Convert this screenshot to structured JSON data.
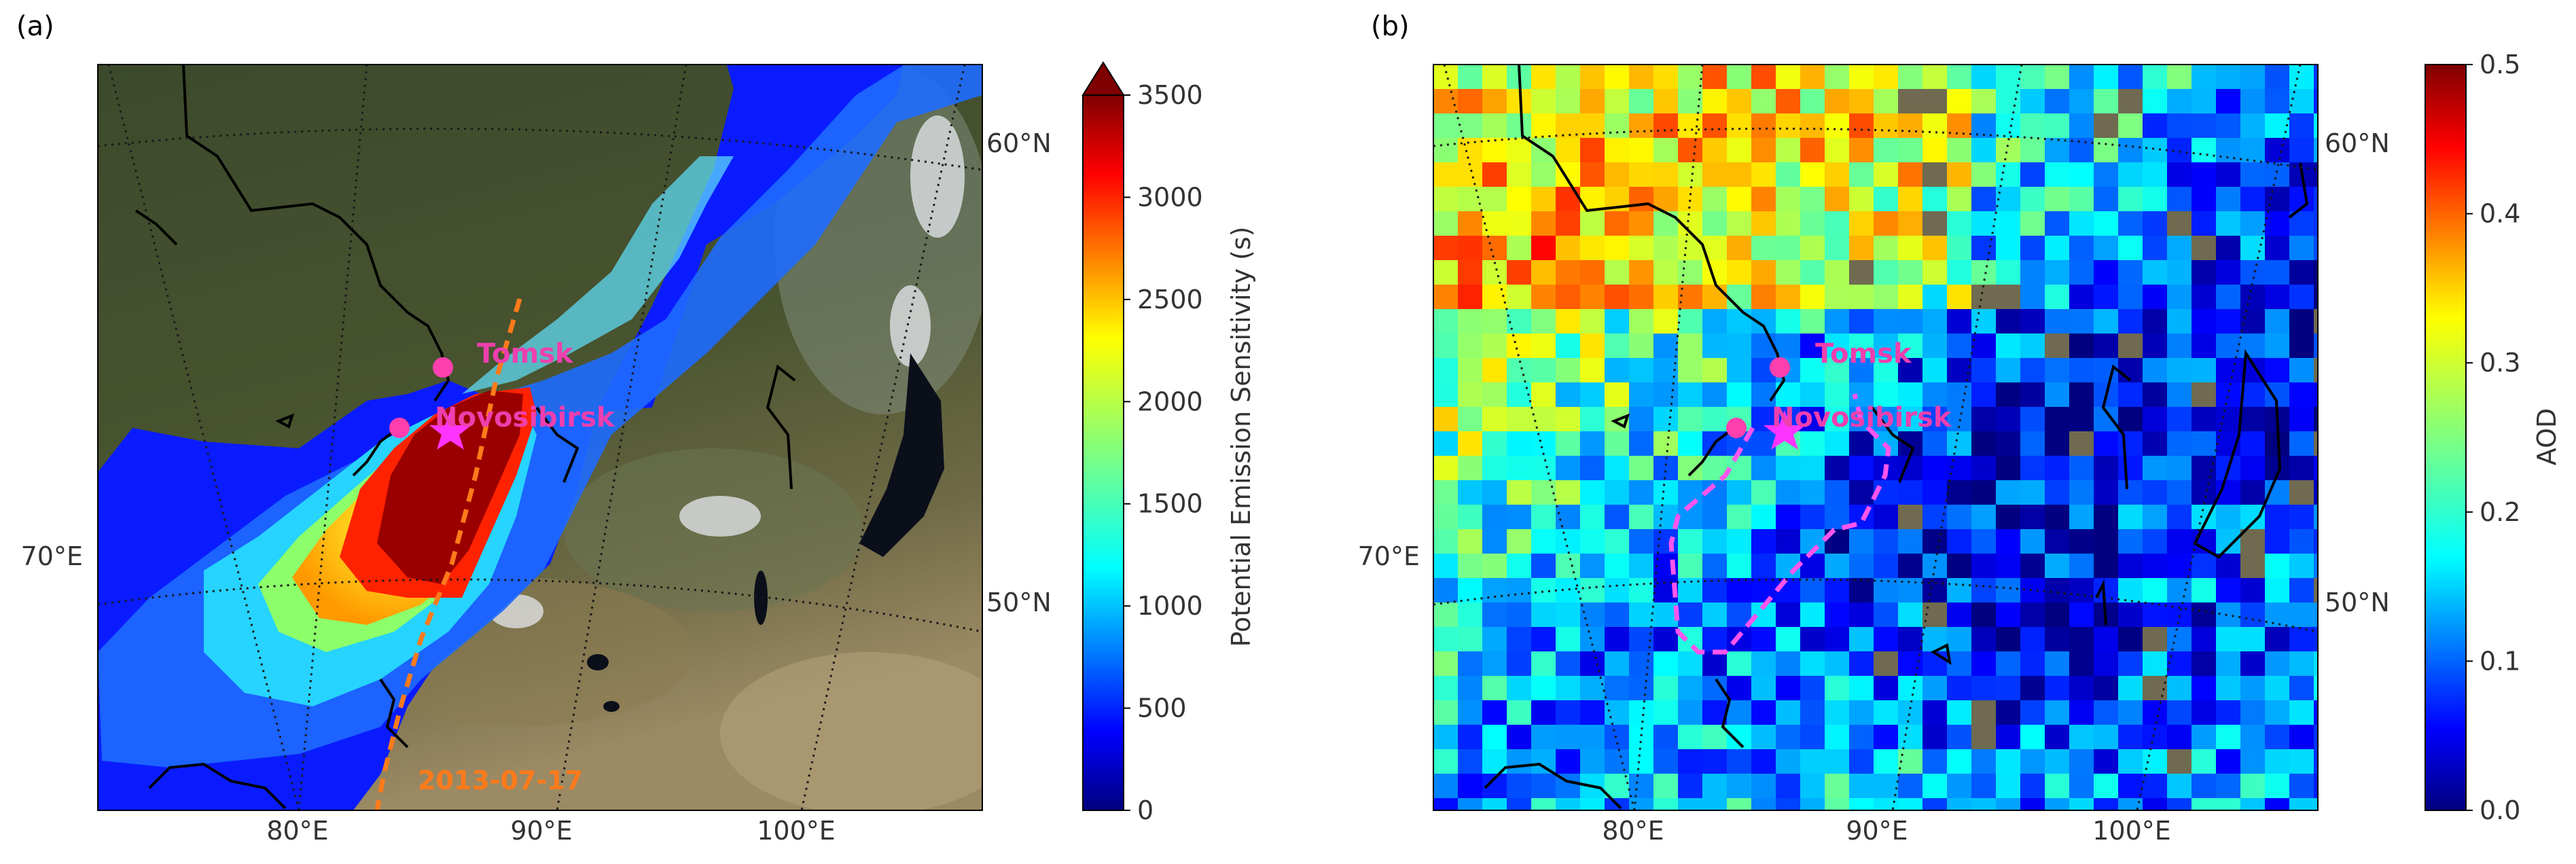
{
  "figure": {
    "panels": [
      {
        "panel_label": "(a)",
        "map": {
          "meridian_labels": [
            "80°E",
            "90°E",
            "100°E"
          ],
          "left_meridian_label": "70°E",
          "parallel_labels": [
            "60°N",
            "50°N"
          ],
          "cities": [
            {
              "name": "Tomsk"
            },
            {
              "name": "Novosibirsk"
            }
          ],
          "trajectory_date_label": "2013-07-17",
          "background": "satellite imagery",
          "overlay": "potential emission sensitivity field"
        },
        "colorbar": {
          "label": "Potential Emission Sensitivity (s)",
          "tick_labels": [
            "0",
            "500",
            "1000",
            "1500",
            "2000",
            "2500",
            "3000",
            "3500"
          ],
          "range": [
            0,
            3500
          ],
          "extend": "max",
          "colormap": "jet"
        }
      },
      {
        "panel_label": "(b)",
        "map": {
          "meridian_labels": [
            "80°E",
            "90°E",
            "100°E"
          ],
          "left_meridian_label": "70°E",
          "parallel_labels": [
            "60°N",
            "50°N"
          ],
          "cities": [
            {
              "name": "Tomsk"
            },
            {
              "name": "Novosibirsk"
            }
          ],
          "background": "satellite imagery",
          "overlay": "gridded AOD"
        },
        "colorbar": {
          "label": "AOD",
          "tick_labels": [
            "0.0",
            "0.1",
            "0.2",
            "0.3",
            "0.4",
            "0.5"
          ],
          "range": [
            0.0,
            0.5
          ],
          "colormap": "jet"
        }
      }
    ],
    "colors": {
      "city_marker": "#ff3fae",
      "star_marker": "#ff33ff",
      "city_label": "#ee3fae",
      "trajectory": "#ff7a1a",
      "plume_outline": "#ff55ee",
      "coastline": "#000000",
      "gridline": "#1a1a1a",
      "label_text": "#333333"
    },
    "icons": [
      "city-marker-dot",
      "star-marker"
    ]
  }
}
